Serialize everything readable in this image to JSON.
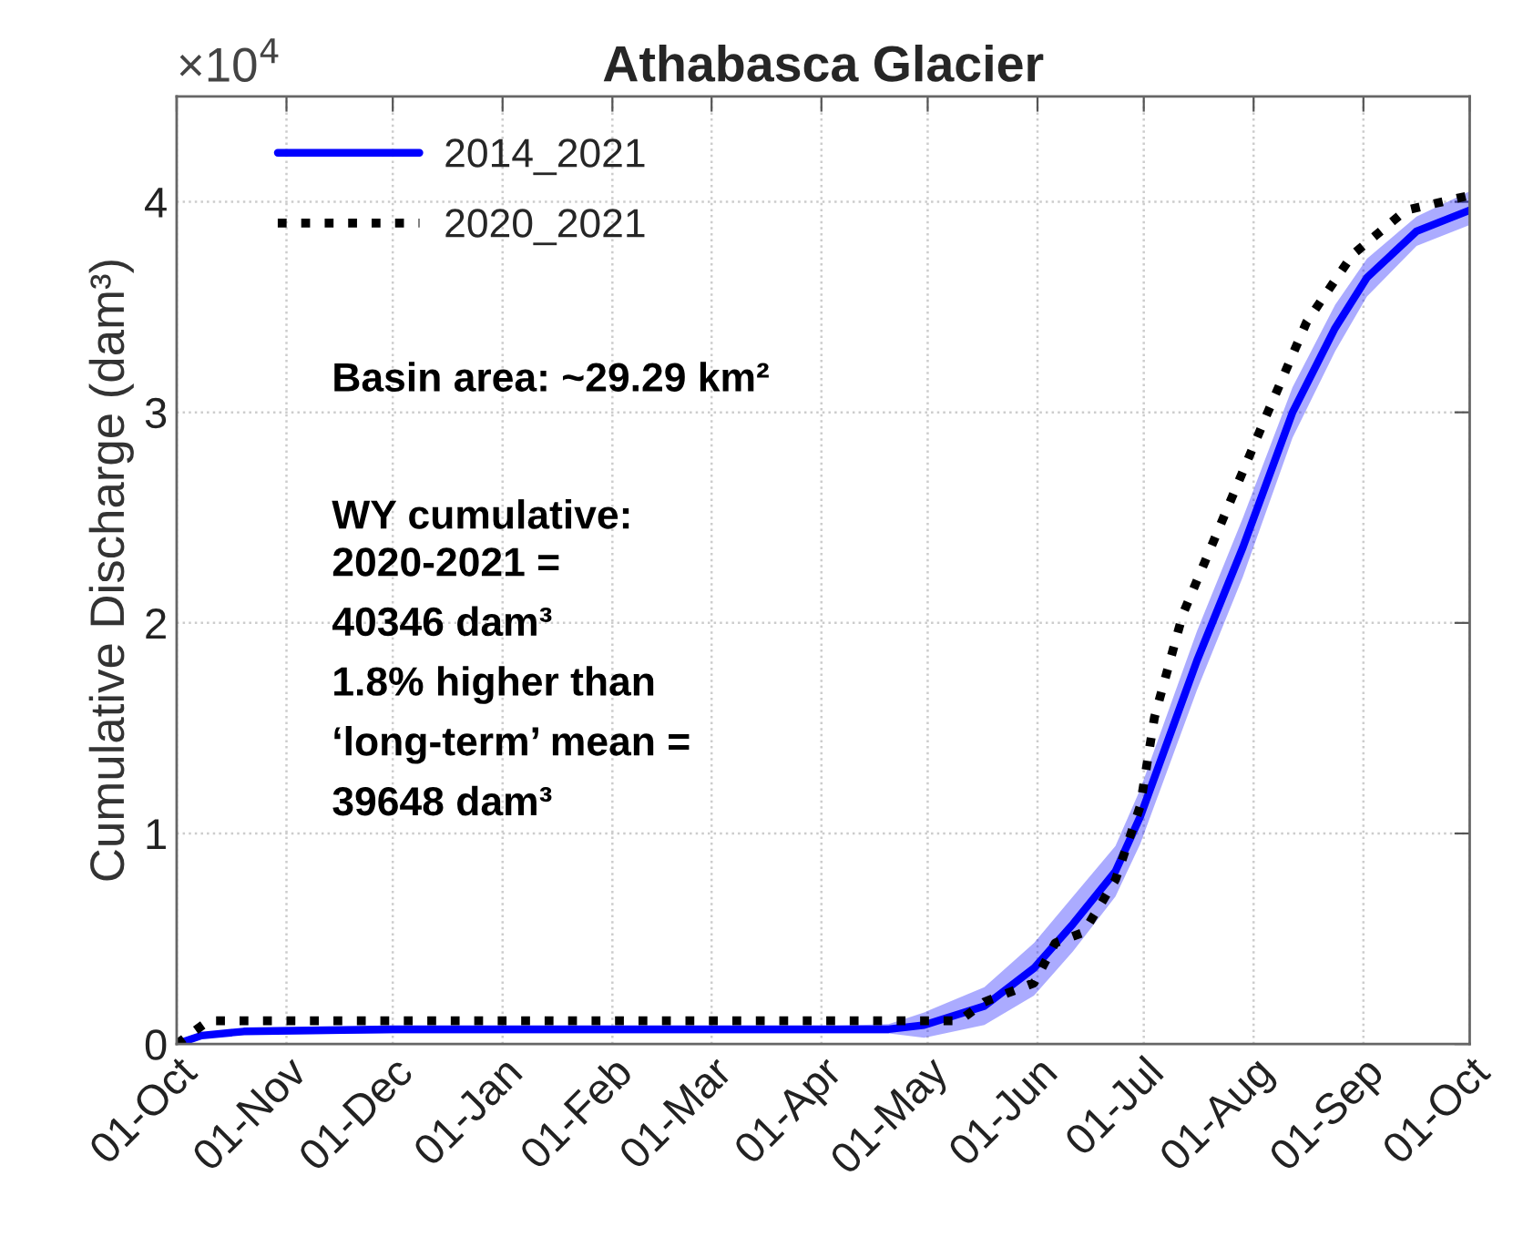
{
  "chart_data": {
    "type": "line",
    "title": "Athabasca Glacier",
    "ylabel": "Cumulative Discharge (dam³)",
    "xlim": [
      "2020-10-01",
      "2021-10-01"
    ],
    "xticks": [
      {
        "value": "2020-10-01",
        "label": "01-Oct"
      },
      {
        "value": "2020-11-01",
        "label": "01-Nov"
      },
      {
        "value": "2020-12-01",
        "label": "01-Dec"
      },
      {
        "value": "2021-01-01",
        "label": "01-Jan"
      },
      {
        "value": "2021-02-01",
        "label": "01-Feb"
      },
      {
        "value": "2021-03-01",
        "label": "01-Mar"
      },
      {
        "value": "2021-04-01",
        "label": "01-Apr"
      },
      {
        "value": "2021-05-01",
        "label": "01-May"
      },
      {
        "value": "2021-06-01",
        "label": "01-Jun"
      },
      {
        "value": "2021-07-01",
        "label": "01-Jul"
      },
      {
        "value": "2021-08-01",
        "label": "01-Aug"
      },
      {
        "value": "2021-09-01",
        "label": "01-Sep"
      },
      {
        "value": "2021-10-01",
        "label": "01-Oct"
      }
    ],
    "ylim": [
      0,
      4.5
    ],
    "yticks": [
      0,
      1,
      2,
      3,
      4
    ],
    "grid": true,
    "legend": "top left",
    "series": [
      {
        "name": "2014_2021",
        "color": "#0000ff",
        "line_style": "solid",
        "x": [
          "2020-10-01",
          "2020-10-08",
          "2020-10-20",
          "2020-12-01",
          "2021-02-01",
          "2021-04-01",
          "2021-04-20",
          "2021-04-30",
          "2021-05-17",
          "2021-05-31",
          "2021-06-11",
          "2021-06-23",
          "2021-06-30",
          "2021-07-16",
          "2021-07-29",
          "2021-08-12",
          "2021-08-24",
          "2021-09-02",
          "2021-09-16",
          "2021-10-01"
        ],
        "values": [
          0,
          0.04,
          0.06,
          0.07,
          0.07,
          0.07,
          0.07,
          0.09,
          0.18,
          0.36,
          0.57,
          0.82,
          1.08,
          1.82,
          2.36,
          3.0,
          3.4,
          3.64,
          3.86,
          3.96
        ],
        "lower": [
          0,
          0.03,
          0.045,
          0.05,
          0.05,
          0.05,
          0.05,
          0.03,
          0.09,
          0.23,
          0.44,
          0.7,
          0.95,
          1.68,
          2.22,
          2.88,
          3.29,
          3.55,
          3.79,
          3.89
        ],
        "upper": [
          0,
          0.05,
          0.075,
          0.08,
          0.08,
          0.085,
          0.095,
          0.15,
          0.27,
          0.48,
          0.7,
          0.94,
          1.21,
          1.96,
          2.5,
          3.12,
          3.51,
          3.73,
          3.93,
          4.05
        ]
      },
      {
        "name": "2020_2021",
        "color": "#000000",
        "line_style": "dotted",
        "x": [
          "2020-10-01",
          "2020-10-10",
          "2021-05-10",
          "2021-05-17",
          "2021-05-31",
          "2021-06-06",
          "2021-06-14",
          "2021-06-23",
          "2021-06-30",
          "2021-07-04",
          "2021-07-12",
          "2021-07-23",
          "2021-08-05",
          "2021-08-16",
          "2021-08-29",
          "2021-09-13",
          "2021-10-01"
        ],
        "values": [
          0,
          0.11,
          0.11,
          0.2,
          0.29,
          0.48,
          0.53,
          0.78,
          1.13,
          1.55,
          2.04,
          2.48,
          3.0,
          3.43,
          3.75,
          3.96,
          4.03
        ]
      }
    ],
    "annotations": [
      "×10$^{4}$",
      "Basin area: ~29.29 km²",
      "WY cumulative:",
      "2020-2021 =\n40346 dam³\n1.8% higher than\n‘long-term’ mean =\n39648 dam³"
    ]
  }
}
